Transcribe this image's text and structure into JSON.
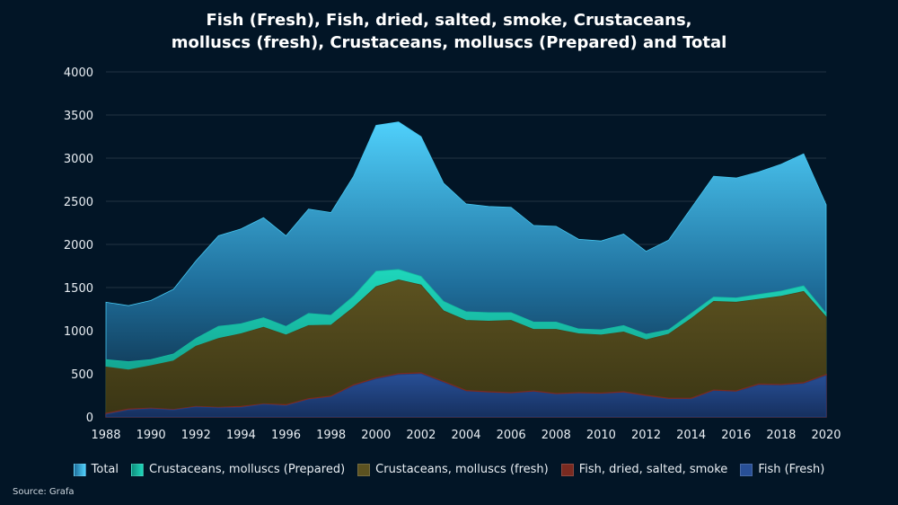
{
  "title_line1": "Fish (Fresh), Fish, dried, salted, smoke, Crustaceans,",
  "title_line2": "molluscs (fresh), Crustaceans, molluscs (Prepared) and Total",
  "source": "Source: Grafa",
  "chart_data": {
    "type": "area",
    "title": "Fish (Fresh), Fish, dried, salted, smoke, Crustaceans, molluscs (fresh), Crustaceans, molluscs (Prepared) and Total",
    "xlabel": "",
    "ylabel": "",
    "x": [
      1988,
      1989,
      1990,
      1991,
      1992,
      1993,
      1994,
      1995,
      1996,
      1997,
      1998,
      1999,
      2000,
      2001,
      2002,
      2003,
      2004,
      2005,
      2006,
      2007,
      2008,
      2009,
      2010,
      2011,
      2012,
      2013,
      2014,
      2015,
      2016,
      2017,
      2018,
      2019,
      2020
    ],
    "xlim": [
      1988,
      2020
    ],
    "ylim": [
      0,
      4000
    ],
    "x_ticks": [
      "1988",
      "1990",
      "1992",
      "1994",
      "1996",
      "1998",
      "2000",
      "2002",
      "2004",
      "2006",
      "2008",
      "2010",
      "2012",
      "2014",
      "2016",
      "2018",
      "2020"
    ],
    "y_ticks": [
      "0",
      "500",
      "1000",
      "1500",
      "2000",
      "2500",
      "3000",
      "3500",
      "4000"
    ],
    "grid": true,
    "legend_position": "bottom",
    "series": [
      {
        "name": "Total",
        "color": "#45c6f0",
        "values": [
          1330,
          1290,
          1350,
          1480,
          1810,
          2100,
          2180,
          2310,
          2100,
          2410,
          2370,
          2790,
          3380,
          3420,
          3250,
          2710,
          2470,
          2440,
          2430,
          2220,
          2210,
          2060,
          2040,
          2120,
          1920,
          2050,
          2420,
          2790,
          2770,
          2840,
          2930,
          3050,
          2460
        ]
      },
      {
        "name": "Crustaceans, molluscs (Prepared)",
        "color": "#14b8a0",
        "values": [
          665,
          640,
          665,
          730,
          910,
          1050,
          1080,
          1150,
          1050,
          1200,
          1180,
          1400,
          1690,
          1710,
          1630,
          1340,
          1220,
          1210,
          1210,
          1100,
          1100,
          1020,
          1010,
          1060,
          960,
          1010,
          1200,
          1390,
          1380,
          1420,
          1460,
          1520,
          1200
        ]
      },
      {
        "name": "Crustaceans, molluscs (fresh)",
        "color": "#4a4218",
        "values": [
          580,
          545,
          595,
          650,
          820,
          910,
          965,
          1040,
          950,
          1060,
          1065,
          1270,
          1510,
          1590,
          1530,
          1230,
          1120,
          1110,
          1120,
          1015,
          1015,
          965,
          950,
          985,
          895,
          960,
          1140,
          1340,
          1330,
          1365,
          1400,
          1455,
          1160
        ]
      },
      {
        "name": "Fish, dried, salted, smoke",
        "color": "#7a2a20",
        "values": [
          40,
          90,
          100,
          85,
          120,
          110,
          120,
          150,
          140,
          210,
          240,
          370,
          450,
          500,
          510,
          410,
          305,
          290,
          280,
          300,
          270,
          280,
          275,
          290,
          250,
          215,
          215,
          310,
          300,
          380,
          375,
          395,
          490
        ]
      },
      {
        "name": "Fish (Fresh)",
        "color": "#1f3f7f",
        "values": [
          30,
          80,
          95,
          80,
          115,
          105,
          110,
          145,
          130,
          200,
          230,
          360,
          440,
          490,
          500,
          400,
          295,
          280,
          270,
          290,
          260,
          270,
          265,
          280,
          240,
          205,
          205,
          300,
          290,
          370,
          365,
          385,
          480
        ]
      }
    ]
  }
}
